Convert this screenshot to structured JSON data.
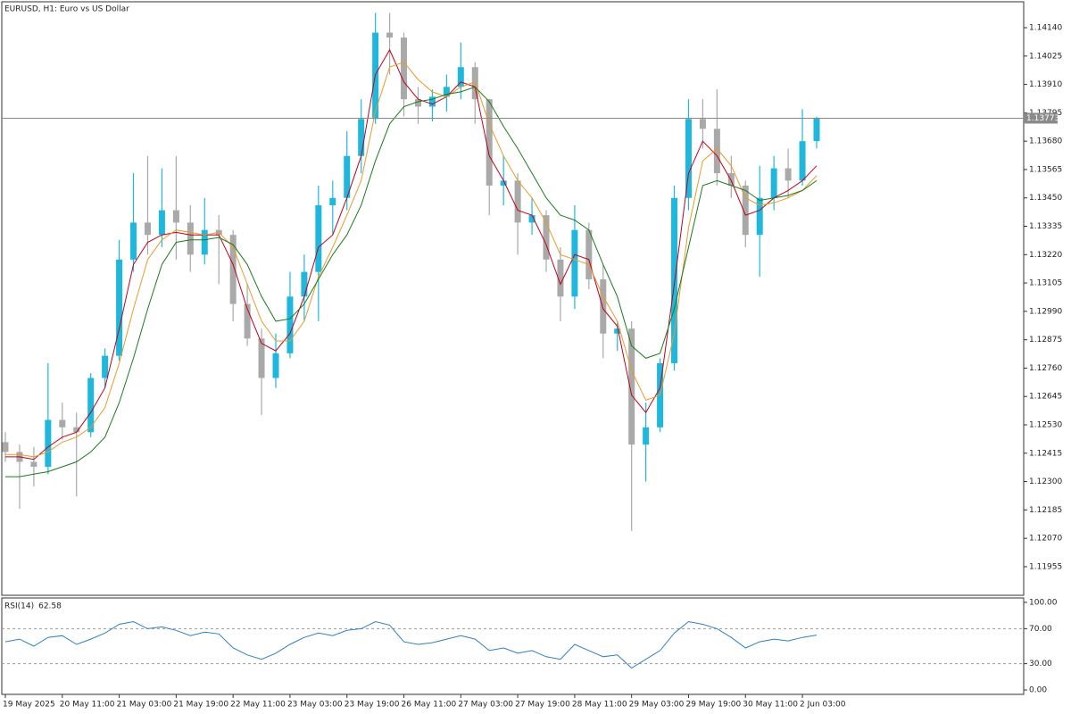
{
  "chart_data": [
    {
      "type": "candlestick",
      "title": "EURUSD, H1:  Euro vs US Dollar",
      "categories": [
        "19 May 2025",
        null,
        null,
        null,
        "20 May 11:00",
        null,
        null,
        null,
        "21 May 03:00",
        null,
        null,
        null,
        "21 May 19:00",
        null,
        null,
        null,
        "22 May 11:00",
        null,
        null,
        null,
        "23 May 03:00",
        null,
        null,
        null,
        "23 May 19:00",
        null,
        null,
        null,
        "26 May 11:00",
        null,
        null,
        null,
        "27 May 03:00",
        null,
        null,
        null,
        "27 May 19:00",
        null,
        null,
        null,
        "28 May 11:00",
        null,
        null,
        null,
        "29 May 03:00",
        null,
        null,
        null,
        "29 May 19:00",
        null,
        null,
        null,
        "30 May 11:00",
        null,
        null,
        null,
        "2 Jun 03:00",
        null
      ],
      "open": [
        1.1246,
        1.1242,
        1.1238,
        1.1236,
        1.1255,
        1.1252,
        1.125,
        1.1272,
        1.1281,
        1.132,
        1.1335,
        1.133,
        1.134,
        1.1335,
        1.1322,
        1.1332,
        1.133,
        1.1302,
        1.1288,
        1.1272,
        1.1282,
        1.1305,
        1.1315,
        1.1342,
        1.1345,
        1.1362,
        1.1377,
        1.1412,
        1.141,
        1.1385,
        1.1382,
        1.1386,
        1.139,
        1.1398,
        1.1385,
        1.135,
        1.1352,
        1.1335,
        1.1338,
        1.132,
        1.1305,
        1.1332,
        1.1312,
        1.129,
        1.1292,
        1.1245,
        1.1252,
        1.1278,
        1.1345,
        1.1377,
        1.1373,
        1.1355,
        1.135,
        1.133,
        1.1345,
        1.1357,
        1.1352,
        1.1368
      ],
      "high": [
        1.125,
        1.1245,
        1.1244,
        1.1278,
        1.1262,
        1.1258,
        1.1274,
        1.1284,
        1.1328,
        1.1355,
        1.1362,
        1.1357,
        1.1362,
        1.1342,
        1.1345,
        1.1338,
        1.1332,
        1.131,
        1.1292,
        1.129,
        1.1315,
        1.1322,
        1.135,
        1.1352,
        1.1372,
        1.1385,
        1.142,
        1.142,
        1.1412,
        1.139,
        1.1389,
        1.1395,
        1.1408,
        1.14,
        1.1385,
        1.1362,
        1.1355,
        1.1345,
        1.134,
        1.1325,
        1.1342,
        1.1335,
        1.1318,
        1.1295,
        1.1295,
        1.1262,
        1.128,
        1.135,
        1.1385,
        1.1385,
        1.1389,
        1.1362,
        1.1352,
        1.1358,
        1.1362,
        1.1365,
        1.1381,
        1.1378
      ],
      "low": [
        1.1238,
        1.1219,
        1.1228,
        1.1233,
        1.1247,
        1.1224,
        1.1248,
        1.1268,
        1.1279,
        1.1315,
        1.1322,
        1.1325,
        1.132,
        1.1315,
        1.1318,
        1.131,
        1.1295,
        1.1285,
        1.1257,
        1.1268,
        1.128,
        1.1295,
        1.1295,
        1.133,
        1.134,
        1.1355,
        1.1375,
        1.1395,
        1.1378,
        1.1375,
        1.1376,
        1.138,
        1.1385,
        1.1375,
        1.1338,
        1.1342,
        1.1322,
        1.133,
        1.1315,
        1.1295,
        1.13,
        1.1308,
        1.128,
        1.1283,
        1.121,
        1.123,
        1.125,
        1.1275,
        1.134,
        1.1365,
        1.135,
        1.1345,
        1.1325,
        1.1313,
        1.134,
        1.1345,
        1.135,
        1.1365
      ],
      "close": [
        1.1242,
        1.1238,
        1.1236,
        1.1255,
        1.1252,
        1.125,
        1.1272,
        1.1281,
        1.132,
        1.1335,
        1.133,
        1.134,
        1.1335,
        1.1322,
        1.1332,
        1.133,
        1.1302,
        1.1288,
        1.1272,
        1.1282,
        1.1305,
        1.1315,
        1.1342,
        1.1345,
        1.1362,
        1.1377,
        1.1412,
        1.141,
        1.1385,
        1.1382,
        1.1386,
        1.139,
        1.1398,
        1.1385,
        1.135,
        1.1352,
        1.1335,
        1.1338,
        1.132,
        1.1305,
        1.1332,
        1.1312,
        1.129,
        1.1292,
        1.1245,
        1.1252,
        1.1278,
        1.1345,
        1.1377,
        1.1373,
        1.1355,
        1.135,
        1.133,
        1.1345,
        1.1357,
        1.1352,
        1.1368,
        1.13773
      ],
      "up_color": "#1fb8dc",
      "down_color": "#a9a9a9",
      "series": [
        {
          "color": "#c0001c",
          "values": [
            1.124,
            1.124,
            1.1239,
            1.1244,
            1.1248,
            1.125,
            1.1258,
            1.1268,
            1.1292,
            1.1318,
            1.1327,
            1.133,
            1.1331,
            1.133,
            1.133,
            1.133,
            1.1318,
            1.13,
            1.1286,
            1.1283,
            1.129,
            1.1305,
            1.1325,
            1.133,
            1.1345,
            1.1362,
            1.1395,
            1.1405,
            1.1392,
            1.1385,
            1.1383,
            1.1386,
            1.1392,
            1.139,
            1.1362,
            1.1352,
            1.134,
            1.1338,
            1.1326,
            1.131,
            1.1322,
            1.132,
            1.13,
            1.1293,
            1.1265,
            1.1258,
            1.1268,
            1.131,
            1.1355,
            1.1368,
            1.1362,
            1.1352,
            1.1338,
            1.134,
            1.1345,
            1.1348,
            1.1352,
            1.1358
          ]
        },
        {
          "color": "#e89a2a",
          "values": [
            1.1241,
            1.1241,
            1.124,
            1.1242,
            1.1246,
            1.1248,
            1.1252,
            1.126,
            1.1278,
            1.13,
            1.132,
            1.1328,
            1.1332,
            1.1331,
            1.133,
            1.1331,
            1.1325,
            1.131,
            1.1295,
            1.1287,
            1.1287,
            1.1295,
            1.1313,
            1.1325,
            1.1338,
            1.1352,
            1.138,
            1.1398,
            1.14,
            1.1393,
            1.1388,
            1.1386,
            1.139,
            1.1392,
            1.1375,
            1.1362,
            1.1352,
            1.1345,
            1.1335,
            1.1322,
            1.132,
            1.1318,
            1.1305,
            1.1295,
            1.1275,
            1.1263,
            1.1265,
            1.129,
            1.1333,
            1.136,
            1.1365,
            1.1358,
            1.1345,
            1.1342,
            1.1343,
            1.1345,
            1.1348,
            1.1354
          ]
        },
        {
          "color": "#1c7a1c",
          "values": [
            1.1232,
            1.1232,
            1.1233,
            1.1234,
            1.1236,
            1.1238,
            1.1242,
            1.1248,
            1.1262,
            1.128,
            1.13,
            1.1318,
            1.1327,
            1.1328,
            1.1328,
            1.1329,
            1.1326,
            1.1318,
            1.1305,
            1.1295,
            1.1296,
            1.1302,
            1.1312,
            1.1322,
            1.133,
            1.1342,
            1.136,
            1.1375,
            1.1382,
            1.1384,
            1.1385,
            1.1387,
            1.1388,
            1.139,
            1.1384,
            1.1374,
            1.1365,
            1.1355,
            1.1345,
            1.1338,
            1.1336,
            1.1332,
            1.1318,
            1.1305,
            1.1285,
            1.128,
            1.1282,
            1.13,
            1.1325,
            1.135,
            1.1352,
            1.135,
            1.1348,
            1.1344,
            1.1345,
            1.1346,
            1.1348,
            1.1352
          ]
        }
      ],
      "price_line": 1.13773,
      "ylim": [
        1.11839,
        1.14245
      ],
      "yticks": [
        {
          "value": 1.1414,
          "label": "1.14140"
        },
        1.14025,
        {
          "value": 1.1391,
          "label": "1.13910"
        },
        1.13795,
        {
          "value": 1.1368,
          "label": "1.13680"
        },
        1.13565,
        {
          "value": 1.1345,
          "label": "1.13450"
        },
        1.13335,
        {
          "value": 1.1322,
          "label": "1.13220"
        },
        1.13105,
        {
          "value": 1.1299,
          "label": "1.12990"
        },
        1.12875,
        {
          "value": 1.1276,
          "label": "1.12760"
        },
        1.12645,
        {
          "value": 1.1253,
          "label": "1.12530"
        },
        1.12415,
        {
          "value": 1.123,
          "label": "1.12300"
        },
        1.12185,
        {
          "value": 1.1207,
          "label": "1.12070"
        },
        1.11955
      ]
    },
    {
      "type": "line",
      "title": "RSI(14)",
      "current_value": 62.58,
      "color": "#2f7fc1",
      "values": [
        55,
        58,
        50,
        60,
        62,
        52,
        58,
        65,
        75,
        78,
        70,
        72,
        68,
        62,
        66,
        64,
        48,
        40,
        35,
        42,
        52,
        60,
        65,
        62,
        68,
        70,
        78,
        74,
        55,
        52,
        54,
        58,
        62,
        58,
        45,
        48,
        42,
        45,
        38,
        35,
        52,
        45,
        38,
        40,
        25,
        35,
        45,
        65,
        78,
        75,
        70,
        60,
        48,
        55,
        58,
        56,
        60,
        62.58
      ],
      "ylim": [
        -5,
        105
      ],
      "yticks": [
        {
          "value": 100,
          "label": "100.00"
        },
        {
          "value": 70,
          "label": "70.00"
        },
        {
          "value": 30,
          "label": "30.00"
        },
        {
          "value": 0,
          "label": "0.00"
        }
      ],
      "levels": [
        70,
        30
      ]
    }
  ]
}
